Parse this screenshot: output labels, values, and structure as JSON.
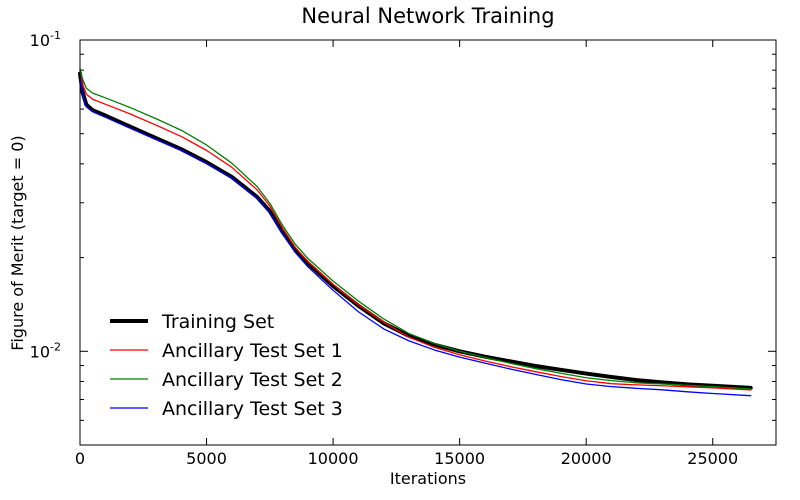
{
  "chart_data": {
    "type": "line",
    "title": "Neural Network Training",
    "xlabel": "Iterations",
    "ylabel": "Figure of Merit (target = 0)",
    "xlim": [
      0,
      27500
    ],
    "ylim": [
      0.005,
      0.1
    ],
    "yscale": "log",
    "grid": false,
    "legend_position": "lower-left",
    "x_ticks": [
      0,
      5000,
      10000,
      15000,
      20000,
      25000
    ],
    "x_tick_labels": [
      "0",
      "5000",
      "10000",
      "15000",
      "20000",
      "25000"
    ],
    "y_ticks": [
      {
        "value": 0.1,
        "base": "10",
        "exp": "-1"
      },
      {
        "value": 0.01,
        "base": "10",
        "exp": "-2"
      }
    ],
    "series": [
      {
        "name": "Training Set",
        "color": "#000000",
        "width": 4,
        "points": [
          [
            0,
            0.078
          ],
          [
            100,
            0.068
          ],
          [
            250,
            0.062
          ],
          [
            500,
            0.0595
          ],
          [
            1000,
            0.0572
          ],
          [
            2000,
            0.0526
          ],
          [
            3000,
            0.0484
          ],
          [
            4000,
            0.0446
          ],
          [
            5000,
            0.0405
          ],
          [
            6000,
            0.0363
          ],
          [
            7000,
            0.0313
          ],
          [
            7500,
            0.0282
          ],
          [
            8000,
            0.0242
          ],
          [
            8500,
            0.0212
          ],
          [
            9000,
            0.0192
          ],
          [
            10000,
            0.0162
          ],
          [
            11000,
            0.014
          ],
          [
            12000,
            0.0123
          ],
          [
            13000,
            0.0112
          ],
          [
            14000,
            0.0105
          ],
          [
            15000,
            0.01
          ],
          [
            16000,
            0.00961
          ],
          [
            17000,
            0.00928
          ],
          [
            18000,
            0.00897
          ],
          [
            19000,
            0.00872
          ],
          [
            20000,
            0.00848
          ],
          [
            21000,
            0.00827
          ],
          [
            22000,
            0.00808
          ],
          [
            23000,
            0.00795
          ],
          [
            24000,
            0.00783
          ],
          [
            25000,
            0.00775
          ],
          [
            26500,
            0.00763
          ]
        ]
      },
      {
        "name": "Ancillary Test Set 1",
        "color": "#ff0000",
        "width": 1.3,
        "points": [
          [
            0,
            0.08
          ],
          [
            100,
            0.072
          ],
          [
            250,
            0.067
          ],
          [
            500,
            0.0645
          ],
          [
            1000,
            0.0622
          ],
          [
            2000,
            0.0578
          ],
          [
            3000,
            0.0533
          ],
          [
            4000,
            0.049
          ],
          [
            5000,
            0.0442
          ],
          [
            6000,
            0.039
          ],
          [
            7000,
            0.033
          ],
          [
            7500,
            0.0293
          ],
          [
            8000,
            0.0249
          ],
          [
            8500,
            0.0216
          ],
          [
            9000,
            0.0194
          ],
          [
            10000,
            0.0164
          ],
          [
            11000,
            0.0141
          ],
          [
            12000,
            0.0124
          ],
          [
            13000,
            0.0111
          ],
          [
            14000,
            0.0103
          ],
          [
            15000,
            0.00975
          ],
          [
            16000,
            0.00931
          ],
          [
            17000,
            0.00893
          ],
          [
            18000,
            0.0086
          ],
          [
            19000,
            0.0083
          ],
          [
            20000,
            0.00804
          ],
          [
            21000,
            0.00787
          ],
          [
            22000,
            0.0078
          ],
          [
            23000,
            0.00775
          ],
          [
            24000,
            0.00769
          ],
          [
            25000,
            0.00763
          ],
          [
            26500,
            0.00751
          ]
        ]
      },
      {
        "name": "Ancillary Test Set 2",
        "color": "#008000",
        "width": 1.3,
        "points": [
          [
            0,
            0.081
          ],
          [
            100,
            0.075
          ],
          [
            250,
            0.07
          ],
          [
            500,
            0.0675
          ],
          [
            1000,
            0.0652
          ],
          [
            2000,
            0.0606
          ],
          [
            3000,
            0.0559
          ],
          [
            4000,
            0.0513
          ],
          [
            5000,
            0.046
          ],
          [
            6000,
            0.0402
          ],
          [
            7000,
            0.0338
          ],
          [
            7500,
            0.0299
          ],
          [
            8000,
            0.0254
          ],
          [
            8500,
            0.0221
          ],
          [
            9000,
            0.0199
          ],
          [
            10000,
            0.0168
          ],
          [
            11000,
            0.0145
          ],
          [
            12000,
            0.0127
          ],
          [
            13000,
            0.0114
          ],
          [
            14000,
            0.0106
          ],
          [
            15000,
            0.01
          ],
          [
            16000,
            0.00955
          ],
          [
            17000,
            0.00915
          ],
          [
            18000,
            0.0088
          ],
          [
            19000,
            0.0085
          ],
          [
            20000,
            0.00822
          ],
          [
            21000,
            0.00805
          ],
          [
            22000,
            0.00792
          ],
          [
            23000,
            0.00785
          ],
          [
            24000,
            0.00778
          ],
          [
            25000,
            0.0077
          ],
          [
            26500,
            0.00757
          ]
        ]
      },
      {
        "name": "Ancillary Test Set 3",
        "color": "#0000ff",
        "width": 1.3,
        "points": [
          [
            0,
            0.077
          ],
          [
            100,
            0.067
          ],
          [
            250,
            0.061
          ],
          [
            500,
            0.0588
          ],
          [
            1000,
            0.0565
          ],
          [
            2000,
            0.052
          ],
          [
            3000,
            0.0479
          ],
          [
            4000,
            0.0442
          ],
          [
            5000,
            0.0401
          ],
          [
            6000,
            0.036
          ],
          [
            7000,
            0.031
          ],
          [
            7500,
            0.0279
          ],
          [
            8000,
            0.0239
          ],
          [
            8500,
            0.0208
          ],
          [
            9000,
            0.0187
          ],
          [
            10000,
            0.0157
          ],
          [
            11000,
            0.0134
          ],
          [
            12000,
            0.0118
          ],
          [
            13000,
            0.0108
          ],
          [
            14000,
            0.0101
          ],
          [
            15000,
            0.00958
          ],
          [
            16000,
            0.00916
          ],
          [
            17000,
            0.00877
          ],
          [
            18000,
            0.00843
          ],
          [
            19000,
            0.00811
          ],
          [
            20000,
            0.00785
          ],
          [
            21000,
            0.0077
          ],
          [
            22000,
            0.0076
          ],
          [
            23000,
            0.00752
          ],
          [
            24000,
            0.00741
          ],
          [
            25000,
            0.00732
          ],
          [
            26500,
            0.0072
          ]
        ]
      }
    ]
  }
}
